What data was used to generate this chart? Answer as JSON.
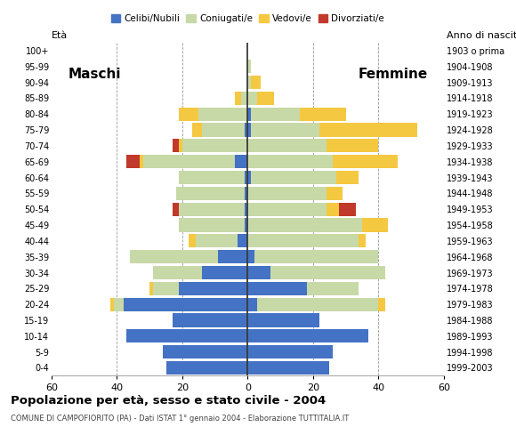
{
  "age_groups": [
    "0-4",
    "5-9",
    "10-14",
    "15-19",
    "20-24",
    "25-29",
    "30-34",
    "35-39",
    "40-44",
    "45-49",
    "50-54",
    "55-59",
    "60-64",
    "65-69",
    "70-74",
    "75-79",
    "80-84",
    "85-89",
    "90-94",
    "95-99",
    "100+"
  ],
  "birth_years": [
    "1999-2003",
    "1994-1998",
    "1989-1993",
    "1984-1988",
    "1979-1983",
    "1974-1978",
    "1969-1973",
    "1964-1968",
    "1959-1963",
    "1954-1958",
    "1949-1953",
    "1944-1948",
    "1939-1943",
    "1934-1938",
    "1929-1933",
    "1924-1928",
    "1919-1923",
    "1914-1918",
    "1909-1913",
    "1904-1908",
    "1903 o prima"
  ],
  "male": {
    "celibe": [
      25,
      26,
      37,
      23,
      38,
      21,
      14,
      9,
      3,
      1,
      1,
      1,
      1,
      4,
      0,
      1,
      0,
      0,
      0,
      0,
      0
    ],
    "coniugato": [
      0,
      0,
      0,
      0,
      3,
      8,
      15,
      27,
      13,
      20,
      20,
      21,
      20,
      28,
      20,
      13,
      15,
      2,
      0,
      0,
      0
    ],
    "vedovo": [
      0,
      0,
      0,
      0,
      1,
      1,
      0,
      0,
      2,
      0,
      0,
      0,
      0,
      1,
      1,
      3,
      6,
      2,
      0,
      0,
      0
    ],
    "divorziato": [
      0,
      0,
      0,
      0,
      0,
      0,
      0,
      0,
      0,
      0,
      2,
      0,
      0,
      4,
      2,
      0,
      0,
      0,
      0,
      0,
      0
    ]
  },
  "female": {
    "nubile": [
      25,
      26,
      37,
      22,
      3,
      18,
      7,
      2,
      0,
      0,
      0,
      0,
      1,
      0,
      0,
      1,
      1,
      0,
      0,
      0,
      0
    ],
    "coniugata": [
      0,
      0,
      0,
      0,
      37,
      16,
      35,
      38,
      34,
      35,
      24,
      24,
      26,
      26,
      24,
      21,
      15,
      3,
      1,
      1,
      0
    ],
    "vedova": [
      0,
      0,
      0,
      0,
      2,
      0,
      0,
      0,
      2,
      8,
      4,
      5,
      7,
      20,
      16,
      30,
      14,
      5,
      3,
      0,
      0
    ],
    "divorziata": [
      0,
      0,
      0,
      0,
      0,
      0,
      0,
      0,
      0,
      0,
      5,
      0,
      0,
      0,
      0,
      0,
      0,
      0,
      0,
      0,
      0
    ]
  },
  "color_celibe": "#4472c4",
  "color_coniugato": "#c8d9a8",
  "color_vedovo": "#f5c842",
  "color_divorziato": "#c0392b",
  "xlim": 60,
  "title": "Popolazione per età, sesso e stato civile - 2004",
  "subtitle": "COMUNE DI CAMPOFIORITO (PA) - Dati ISTAT 1° gennaio 2004 - Elaborazione TUTTITALIA.IT",
  "ylabel_left": "Età",
  "ylabel_right": "Anno di nascita",
  "label_maschi": "Maschi",
  "label_femmine": "Femmine",
  "legend_labels": [
    "Celibi/Nubili",
    "Coniugati/e",
    "Vedovi/e",
    "Divorziati/e"
  ],
  "bar_height": 0.85
}
